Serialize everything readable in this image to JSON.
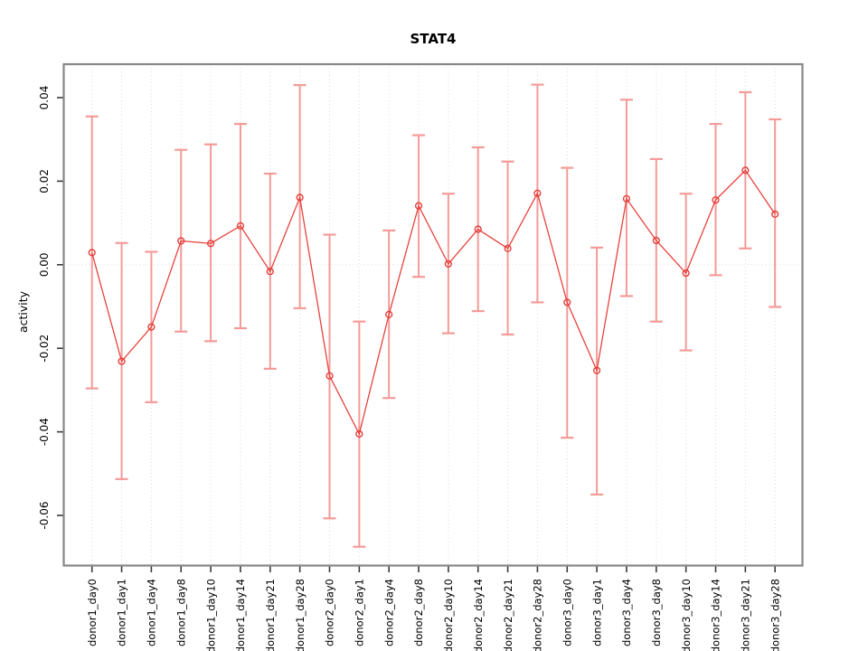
{
  "chart_data": {
    "type": "line",
    "title": "STAT4",
    "xlabel": "",
    "ylabel": "activity",
    "legend": "none",
    "grid": "vertical dotted gridlines at each category plus dotted horizontal line at 0",
    "categories": [
      "donor1_day0",
      "donor1_day1",
      "donor1_day4",
      "donor1_day8",
      "donor1_day10",
      "donor1_day14",
      "donor1_day21",
      "donor1_day28",
      "donor2_day0",
      "donor2_day1",
      "donor2_day4",
      "donor2_day8",
      "donor2_day10",
      "donor2_day14",
      "donor2_day21",
      "donor2_day28",
      "donor3_day0",
      "donor3_day1",
      "donor3_day4",
      "donor3_day8",
      "donor3_day10",
      "donor3_day14",
      "donor3_day21",
      "donor3_day28"
    ],
    "series": [
      {
        "name": "activity",
        "marker": "open-circle",
        "values": [
          0.0029,
          -0.0231,
          -0.0149,
          0.0057,
          0.0051,
          0.0093,
          -0.0016,
          0.0161,
          -0.0266,
          -0.0405,
          -0.0119,
          0.0141,
          0.0002,
          0.0085,
          0.0039,
          0.0171,
          -0.009,
          -0.0253,
          0.0158,
          0.0058,
          -0.002,
          0.0155,
          0.0226,
          0.0121
        ],
        "error_high": [
          0.0355,
          0.0052,
          0.0031,
          0.0275,
          0.0288,
          0.0337,
          0.0218,
          0.043,
          0.0072,
          -0.0136,
          0.0082,
          0.031,
          0.017,
          0.0281,
          0.0247,
          0.0431,
          0.0232,
          0.0041,
          0.0395,
          0.0253,
          0.017,
          0.0337,
          0.0413,
          0.0348
        ],
        "error_low": [
          -0.0296,
          -0.0513,
          -0.0329,
          -0.016,
          -0.0183,
          -0.0152,
          -0.0249,
          -0.0104,
          -0.0607,
          -0.0675,
          -0.0319,
          -0.0029,
          -0.0164,
          -0.0111,
          -0.0167,
          -0.009,
          -0.0414,
          -0.055,
          -0.0075,
          -0.0136,
          -0.0205,
          -0.0025,
          0.0039,
          -0.0101
        ]
      }
    ],
    "ylim": [
      -0.072,
      0.048
    ],
    "yticks": [
      0.04,
      0.02,
      0.0,
      -0.02,
      -0.04,
      -0.06
    ],
    "ytick_labels": [
      "0.04",
      "0.02",
      "0.00",
      "-0.02",
      "-0.04",
      "-0.06"
    ],
    "colors": {
      "line": "#e8423d",
      "point": "#e43f3a",
      "error_bar": "#f49b98",
      "grid": "#dcdcdc",
      "zero_line": "#d9d9d9",
      "frame": "#878787",
      "tick": "#3a3a3a",
      "text": "#000000",
      "background": "#ffffff"
    }
  }
}
